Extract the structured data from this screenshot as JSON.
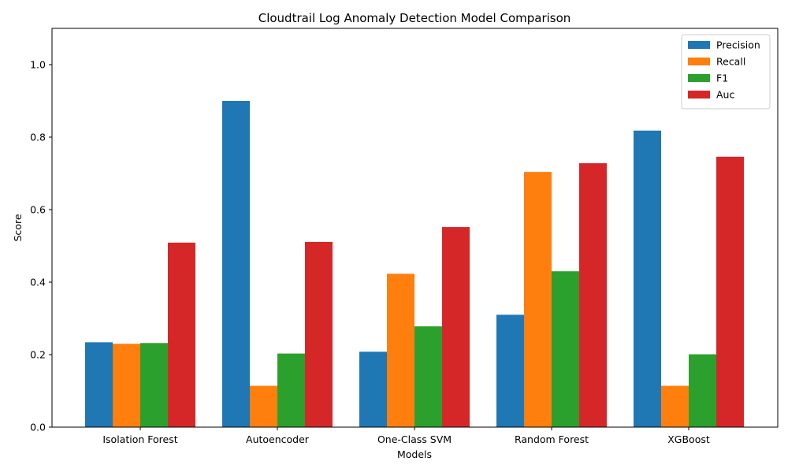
{
  "chart_data": {
    "type": "bar",
    "title": "Cloudtrail Log Anomaly Detection Model Comparison",
    "xlabel": "Models",
    "ylabel": "Score",
    "ylim": [
      0,
      1.1
    ],
    "yticks": [
      "0.0",
      "0.2",
      "0.4",
      "0.6",
      "0.8",
      "1.0"
    ],
    "categories": [
      "Isolation Forest",
      "Autoencoder",
      "One-Class SVM",
      "Random Forest",
      "XGBoost"
    ],
    "series": [
      {
        "name": "Precision",
        "color": "#1f77b4",
        "values": [
          0.234,
          0.9,
          0.208,
          0.31,
          0.818
        ]
      },
      {
        "name": "Recall",
        "color": "#ff7f0e",
        "values": [
          0.23,
          0.114,
          0.423,
          0.704,
          0.114
        ]
      },
      {
        "name": "F1",
        "color": "#2ca02c",
        "values": [
          0.232,
          0.203,
          0.278,
          0.43,
          0.201
        ]
      },
      {
        "name": "Auc",
        "color": "#d62728",
        "values": [
          0.509,
          0.511,
          0.552,
          0.728,
          0.746
        ]
      }
    ],
    "legend_position": "top-right",
    "grid": false
  }
}
